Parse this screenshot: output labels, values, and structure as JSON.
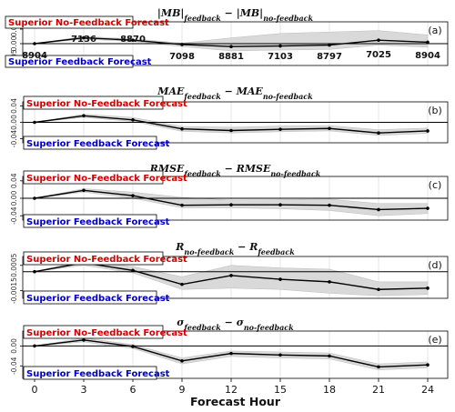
{
  "figure": {
    "xlabel": "Forecast Hour",
    "x_ticks": [
      "0",
      "3",
      "6",
      "9",
      "12",
      "15",
      "18",
      "21",
      "24"
    ],
    "label_no_feedback": "Superior No-Feedback Forecast",
    "label_feedback": "Superior Feedback Forecast",
    "colors": {
      "red_label": "#d00000",
      "blue_label": "#0000c8",
      "line": "#000000",
      "band": "#d9d9d9"
    }
  },
  "chart_data": [
    {
      "type": "line",
      "panel_label": "(a)",
      "title": {
        "base": "|MB|",
        "sub1": "feedback",
        "op": " − ",
        "base2": "|MB|",
        "sub2": "no-feedback"
      },
      "x": [
        0,
        3,
        6,
        9,
        12,
        15,
        18,
        21,
        24
      ],
      "y": [
        0.0,
        0.02,
        0.012,
        -0.003,
        -0.01,
        -0.008,
        -0.005,
        0.012,
        0.005
      ],
      "band_low": [
        0.0,
        0.015,
        0.008,
        -0.01,
        -0.025,
        -0.022,
        -0.02,
        -0.005,
        -0.012
      ],
      "band_high": [
        0.0,
        0.025,
        0.016,
        0.002,
        0.02,
        0.035,
        0.04,
        0.045,
        0.03
      ],
      "ylim": [
        -0.075,
        0.075
      ],
      "yticks": [
        -0.05,
        0.0,
        0.05
      ],
      "ytick_labels": [
        "-0.05",
        "0.00",
        "0.05"
      ],
      "counts": [
        "8904",
        "7136",
        "8870",
        "7098",
        "8881",
        "7103",
        "8797",
        "7025",
        "8904"
      ]
    },
    {
      "type": "line",
      "panel_label": "(b)",
      "title": {
        "base": "MAE",
        "sub1": "feedback",
        "op": " − ",
        "base2": "MAE",
        "sub2": "no-feedback"
      },
      "x": [
        0,
        3,
        6,
        9,
        12,
        15,
        18,
        21,
        24
      ],
      "y": [
        0.0,
        0.016,
        0.006,
        -0.016,
        -0.02,
        -0.017,
        -0.015,
        -0.026,
        -0.021
      ],
      "band_low": [
        0.0,
        0.012,
        0.002,
        -0.022,
        -0.026,
        -0.023,
        -0.021,
        -0.032,
        -0.027
      ],
      "band_high": [
        0.0,
        0.02,
        0.012,
        -0.01,
        -0.012,
        -0.009,
        -0.008,
        -0.018,
        -0.014
      ],
      "ylim": [
        -0.05,
        0.05
      ],
      "yticks": [
        -0.04,
        0.0,
        0.04
      ],
      "ytick_labels": [
        "-0.04",
        "0.00",
        "0.04"
      ]
    },
    {
      "type": "line",
      "panel_label": "(c)",
      "title": {
        "base": "RMSE",
        "sub1": "feedback",
        "op": " − ",
        "base2": "RMSE",
        "sub2": "no-feedback"
      },
      "x": [
        0,
        3,
        6,
        9,
        12,
        15,
        18,
        21,
        24
      ],
      "y": [
        0.0,
        0.018,
        0.006,
        -0.016,
        -0.015,
        -0.015,
        -0.016,
        -0.026,
        -0.023
      ],
      "band_low": [
        0.0,
        0.014,
        0.0,
        -0.022,
        -0.022,
        -0.024,
        -0.028,
        -0.04,
        -0.035
      ],
      "band_high": [
        0.0,
        0.022,
        0.014,
        0.002,
        -0.004,
        -0.003,
        -0.002,
        -0.012,
        -0.012
      ],
      "ylim": [
        -0.05,
        0.05
      ],
      "yticks": [
        -0.04,
        0.0,
        0.04
      ],
      "ytick_labels": [
        "-0.04",
        "0.00",
        "0.04"
      ]
    },
    {
      "type": "line",
      "panel_label": "(d)",
      "title": {
        "base": "R",
        "sub1": "no-feedback",
        "op": " − ",
        "base2": "R",
        "sub2": "feedback"
      },
      "x": [
        0,
        3,
        6,
        9,
        12,
        15,
        18,
        21,
        24
      ],
      "y": [
        0.0,
        0.0007,
        0.0001,
        -0.001,
        -0.0003,
        -0.0006,
        -0.0008,
        -0.0014,
        -0.0013
      ],
      "band_low": [
        0.0,
        0.0005,
        -0.0001,
        -0.0014,
        -0.0013,
        -0.0014,
        -0.0017,
        -0.0019,
        -0.0018
      ],
      "band_high": [
        0.0,
        0.0009,
        0.0004,
        -0.0004,
        0.0005,
        0.0003,
        0.0002,
        -0.0008,
        -0.0008
      ],
      "ylim": [
        -0.0021,
        0.0012
      ],
      "yticks": [
        -0.0015,
        0.0005
      ],
      "ytick_labels": [
        "-0.0015",
        "0.0005"
      ]
    },
    {
      "type": "line",
      "panel_label": "(e)",
      "title": {
        "base": "σ",
        "sub1": "feedback",
        "op": " − ",
        "base2": "σ",
        "sub2": "no-feedback"
      },
      "x": [
        0,
        3,
        6,
        9,
        12,
        15,
        18,
        21,
        24
      ],
      "y": [
        0.0,
        0.012,
        -0.001,
        -0.03,
        -0.015,
        -0.018,
        -0.02,
        -0.042,
        -0.038
      ],
      "band_low": [
        0.0,
        0.008,
        -0.005,
        -0.036,
        -0.021,
        -0.024,
        -0.026,
        -0.048,
        -0.044
      ],
      "band_high": [
        0.0,
        0.016,
        0.003,
        -0.024,
        -0.01,
        -0.012,
        -0.014,
        -0.036,
        -0.032
      ],
      "ylim": [
        -0.065,
        0.03
      ],
      "yticks": [
        -0.04,
        0.0
      ],
      "ytick_labels": [
        "-0.04",
        "0.00"
      ]
    }
  ]
}
